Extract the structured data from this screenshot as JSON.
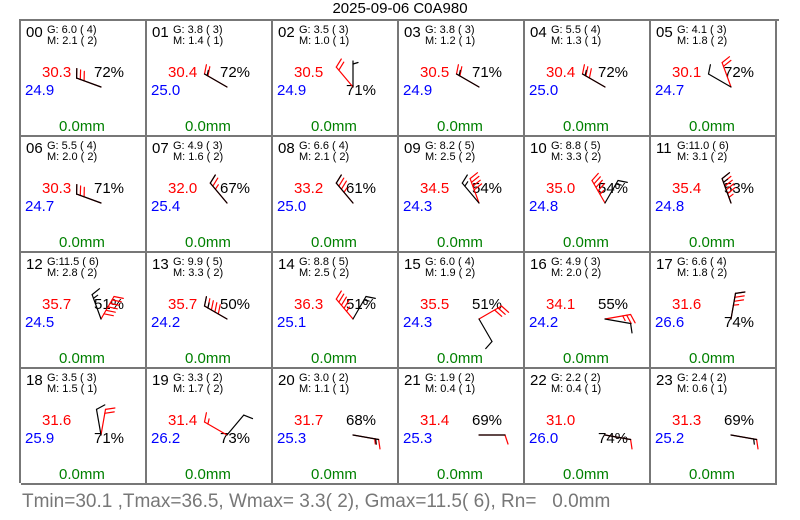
{
  "title": "2025-09-06 C0A980",
  "summary": "Tmin=30.1 ,Tmax=36.5, Wmax= 3.3( 2), Gmax=11.5( 6), Rn=   0.0mm",
  "colors": {
    "temperature": "#ff0000",
    "dewpoint": "#0000ff",
    "rain": "#008000",
    "gust_barb": "#ff0000",
    "wind_barb": "#000000",
    "grid": "#777777"
  },
  "chart_data": {
    "type": "table",
    "columns": 6,
    "rows": 4,
    "units": {
      "temperature": "°C",
      "humidity": "%",
      "wind": "m/s",
      "rain": "mm"
    },
    "hours": [
      {
        "hour": "00",
        "gust": "G: 6.0 ( 4)",
        "mean": "M: 2.1 ( 2)",
        "t": "30.3",
        "td": "24.9",
        "rh": "72%",
        "rh_pos": "upper",
        "rain": "0.0mm",
        "gust_dir": 290,
        "gust_speed": 6.0,
        "wind_dir": 290,
        "wind_speed": 2.1
      },
      {
        "hour": "01",
        "gust": "G: 3.8 ( 3)",
        "mean": "M: 1.4 ( 1)",
        "t": "30.4",
        "td": "25.0",
        "rh": "72%",
        "rh_pos": "upper",
        "rain": "0.0mm",
        "gust_dir": 300,
        "gust_speed": 3.8,
        "wind_dir": 300,
        "wind_speed": 1.4
      },
      {
        "hour": "02",
        "gust": "G: 3.5 ( 3)",
        "mean": "M: 1.0 ( 1)",
        "t": "30.5",
        "td": "24.9",
        "rh": "71%",
        "rh_pos": "lower",
        "rain": "0.0mm",
        "gust_dir": 320,
        "gust_speed": 3.5,
        "wind_dir": 0,
        "wind_speed": 1.0
      },
      {
        "hour": "03",
        "gust": "G: 3.8 ( 3)",
        "mean": "M: 1.2 ( 1)",
        "t": "30.5",
        "td": "24.9",
        "rh": "71%",
        "rh_pos": "upper",
        "rain": "0.0mm",
        "gust_dir": 300,
        "gust_speed": 3.8,
        "wind_dir": 300,
        "wind_speed": 1.2
      },
      {
        "hour": "04",
        "gust": "G: 5.5 ( 4)",
        "mean": "M: 1.3 ( 1)",
        "t": "30.4",
        "td": "25.0",
        "rh": "72%",
        "rh_pos": "upper",
        "rain": "0.0mm",
        "gust_dir": 300,
        "gust_speed": 5.5,
        "wind_dir": 300,
        "wind_speed": 1.3
      },
      {
        "hour": "05",
        "gust": "G: 4.1 ( 3)",
        "mean": "M: 1.8 ( 2)",
        "t": "30.1",
        "td": "24.7",
        "rh": "72%",
        "rh_pos": "upper",
        "rain": "0.0mm",
        "gust_dir": 340,
        "gust_speed": 4.1,
        "wind_dir": 300,
        "wind_speed": 1.8
      },
      {
        "hour": "06",
        "gust": "G: 5.5 ( 4)",
        "mean": "M: 2.0 ( 2)",
        "t": "30.3",
        "td": "24.7",
        "rh": "71%",
        "rh_pos": "upper",
        "rain": "0.0mm",
        "gust_dir": 290,
        "gust_speed": 5.5,
        "wind_dir": 290,
        "wind_speed": 2.0
      },
      {
        "hour": "07",
        "gust": "G: 4.9 ( 3)",
        "mean": "M: 1.6 ( 2)",
        "t": "32.0",
        "td": "25.4",
        "rh": "67%",
        "rh_pos": "upper",
        "rain": "0.0mm",
        "gust_dir": 320,
        "gust_speed": 4.9,
        "wind_dir": 320,
        "wind_speed": 1.6
      },
      {
        "hour": "08",
        "gust": "G: 6.6 ( 4)",
        "mean": "M: 2.1 ( 2)",
        "t": "33.2",
        "td": "25.0",
        "rh": "61%",
        "rh_pos": "upper",
        "rain": "0.0mm",
        "gust_dir": 320,
        "gust_speed": 6.6,
        "wind_dir": 320,
        "wind_speed": 2.1
      },
      {
        "hour": "09",
        "gust": "G: 8.2 ( 5)",
        "mean": "M: 2.5 ( 2)",
        "t": "34.5",
        "td": "24.3",
        "rh": "54%",
        "rh_pos": "upper",
        "rain": "0.0mm",
        "gust_dir": 340,
        "gust_speed": 8.2,
        "wind_dir": 320,
        "wind_speed": 2.5
      },
      {
        "hour": "10",
        "gust": "G: 8.8 ( 5)",
        "mean": "M: 3.3 ( 2)",
        "t": "35.0",
        "td": "24.8",
        "rh": "54%",
        "rh_pos": "upper",
        "rain": "0.0mm",
        "gust_dir": 330,
        "gust_speed": 8.8,
        "wind_dir": 30,
        "wind_speed": 3.3
      },
      {
        "hour": "11",
        "gust": "G:11.0 ( 6)",
        "mean": "M: 3.1 ( 2)",
        "t": "35.4",
        "td": "24.8",
        "rh": "53%",
        "rh_pos": "upper",
        "rain": "0.0mm",
        "gust_dir": 340,
        "gust_speed": 11.0,
        "wind_dir": 340,
        "wind_speed": 3.1
      },
      {
        "hour": "12",
        "gust": "G:11.5 ( 6)",
        "mean": "M: 2.8 ( 2)",
        "t": "35.7",
        "td": "24.5",
        "rh": "51%",
        "rh_pos": "upper",
        "rain": "0.0mm",
        "gust_dir": 30,
        "gust_speed": 11.5,
        "wind_dir": 340,
        "wind_speed": 2.8
      },
      {
        "hour": "13",
        "gust": "G: 9.9 ( 5)",
        "mean": "M: 3.3 ( 2)",
        "t": "35.7",
        "td": "24.2",
        "rh": "50%",
        "rh_pos": "upper",
        "rain": "0.0mm",
        "gust_dir": 300,
        "gust_speed": 9.9,
        "wind_dir": 300,
        "wind_speed": 3.3
      },
      {
        "hour": "14",
        "gust": "G: 8.8 ( 5)",
        "mean": "M: 2.5 ( 2)",
        "t": "36.3",
        "td": "25.1",
        "rh": "51%",
        "rh_pos": "upper",
        "rain": "0.0mm",
        "gust_dir": 320,
        "gust_speed": 8.8,
        "wind_dir": 30,
        "wind_speed": 2.5
      },
      {
        "hour": "15",
        "gust": "G: 6.0 ( 4)",
        "mean": "M: 1.9 ( 2)",
        "t": "35.5",
        "td": "24.3",
        "rh": "51%",
        "rh_pos": "upper",
        "rain": "0.0mm",
        "gust_dir": 60,
        "gust_speed": 6.0,
        "wind_dir": 150,
        "wind_speed": 1.9
      },
      {
        "hour": "16",
        "gust": "G: 4.9 ( 3)",
        "mean": "M: 2.0 ( 2)",
        "t": "34.1",
        "td": "24.2",
        "rh": "55%",
        "rh_pos": "upper",
        "rain": "0.0mm",
        "gust_dir": 80,
        "gust_speed": 4.9,
        "wind_dir": 100,
        "wind_speed": 2.0
      },
      {
        "hour": "17",
        "gust": "G: 6.6 ( 4)",
        "mean": "M: 1.8 ( 2)",
        "t": "31.6",
        "td": "26.6",
        "rh": "74%",
        "rh_pos": "lower",
        "rain": "0.0mm",
        "gust_dir": 10,
        "gust_speed": 6.6,
        "wind_dir": 10,
        "wind_speed": 1.8
      },
      {
        "hour": "18",
        "gust": "G: 3.5 ( 3)",
        "mean": "M: 1.5 ( 1)",
        "t": "31.6",
        "td": "25.9",
        "rh": "71%",
        "rh_pos": "lower",
        "rain": "0.0mm",
        "gust_dir": 10,
        "gust_speed": 3.5,
        "wind_dir": 350,
        "wind_speed": 1.5
      },
      {
        "hour": "19",
        "gust": "G: 3.3 ( 2)",
        "mean": "M: 1.7 ( 2)",
        "t": "31.4",
        "td": "26.2",
        "rh": "73%",
        "rh_pos": "lower",
        "rain": "0.0mm",
        "gust_dir": 300,
        "gust_speed": 3.3,
        "wind_dir": 40,
        "wind_speed": 1.7
      },
      {
        "hour": "20",
        "gust": "G: 3.0 ( 2)",
        "mean": "M: 1.1 ( 1)",
        "t": "31.7",
        "td": "25.3",
        "rh": "68%",
        "rh_pos": "upper",
        "rain": "0.0mm",
        "gust_dir": 100,
        "gust_speed": 3.0,
        "wind_dir": 100,
        "wind_speed": 1.1
      },
      {
        "hour": "21",
        "gust": "G: 1.9 ( 2)",
        "mean": "M: 0.4 ( 1)",
        "t": "31.4",
        "td": "25.3",
        "rh": "69%",
        "rh_pos": "upper",
        "rain": "0.0mm",
        "gust_dir": 90,
        "gust_speed": 1.9,
        "wind_dir": 90,
        "wind_speed": 0.4
      },
      {
        "hour": "22",
        "gust": "G: 2.2 ( 2)",
        "mean": "M: 0.4 ( 1)",
        "t": "31.0",
        "td": "26.0",
        "rh": "74%",
        "rh_pos": "lower",
        "rain": "0.0mm",
        "gust_dir": 100,
        "gust_speed": 2.2,
        "wind_dir": 100,
        "wind_speed": 0.4
      },
      {
        "hour": "23",
        "gust": "G: 2.4 ( 2)",
        "mean": "M: 0.6 ( 1)",
        "t": "31.3",
        "td": "25.2",
        "rh": "69%",
        "rh_pos": "upper",
        "rain": "0.0mm",
        "gust_dir": 100,
        "gust_speed": 2.4,
        "wind_dir": 100,
        "wind_speed": 0.6
      }
    ]
  }
}
